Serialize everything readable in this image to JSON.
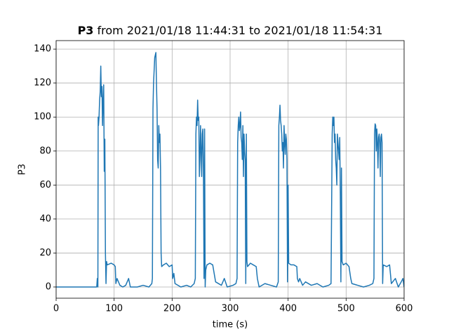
{
  "chart_data": {
    "type": "line",
    "title_bold": "P3",
    "title": "from 2021/01/18 11:44:31 to 2021/01/18 11:54:31",
    "xlabel": "time (s)",
    "ylabel": "P3",
    "xlim": [
      0,
      600
    ],
    "ylim": [
      -6.6,
      145
    ],
    "xticks": [
      0,
      100,
      200,
      300,
      400,
      500,
      600
    ],
    "yticks": [
      0,
      20,
      40,
      60,
      80,
      100,
      120,
      140
    ],
    "grid": true,
    "series": [
      {
        "name": "P3",
        "color": "#1f77b4",
        "x": [
          0,
          70,
          71,
          72,
          72.5,
          73,
          74,
          75,
          76,
          77,
          78,
          79,
          80,
          81,
          82,
          83,
          84,
          85,
          86,
          87,
          88,
          95,
          100,
          102,
          103,
          105,
          110,
          115,
          120,
          125,
          128,
          140,
          150,
          160,
          165,
          166,
          167,
          168,
          170,
          172,
          173,
          174,
          175,
          176,
          177,
          178,
          179,
          180,
          181,
          182,
          185,
          190,
          195,
          200,
          201,
          203,
          205,
          215,
          225,
          232,
          238,
          240,
          241,
          242,
          243,
          244,
          245,
          246,
          247,
          248,
          249,
          250,
          251,
          252,
          253,
          254,
          255,
          256,
          257,
          258,
          260,
          265,
          270,
          275,
          285,
          290,
          295,
          305,
          310,
          312,
          313,
          314,
          315,
          316,
          317,
          318,
          319,
          320,
          321,
          322,
          323,
          324,
          325,
          326,
          327,
          328,
          329,
          330,
          335,
          340,
          345,
          347,
          350,
          360,
          370,
          380,
          383,
          384,
          385,
          386,
          387,
          388,
          389,
          390,
          391,
          392,
          393,
          394,
          395,
          396,
          397,
          398,
          399,
          400,
          401,
          405,
          410,
          415,
          416,
          418,
          420,
          425,
          430,
          440,
          450,
          460,
          470,
          474,
          476,
          477,
          478,
          479,
          480,
          481,
          482,
          483,
          484,
          485,
          486,
          487,
          488,
          489,
          490,
          491,
          492,
          493,
          495,
          500,
          505,
          508,
          510,
          520,
          530,
          540,
          546,
          548,
          549,
          550,
          551,
          552,
          553,
          554,
          555,
          556,
          557,
          558,
          559,
          560,
          561,
          562,
          563,
          564,
          570,
          575,
          578,
          585,
          590,
          595,
          598,
          600
        ],
        "values": [
          0,
          0,
          5,
          0,
          100,
          95,
          100,
          110,
          115,
          130,
          112,
          118,
          95,
          110,
          119,
          68,
          87,
          20,
          2,
          15,
          13,
          14,
          13,
          12,
          2,
          5,
          1,
          0,
          1,
          5,
          0,
          0,
          1,
          0,
          2,
          5,
          105,
          120,
          135,
          138,
          120,
          105,
          75,
          70,
          95,
          85,
          90,
          70,
          20,
          12,
          13,
          14,
          12,
          13,
          5,
          8,
          2,
          0,
          1,
          0,
          2,
          5,
          90,
          100,
          95,
          110,
          98,
          100,
          65,
          75,
          95,
          80,
          65,
          90,
          93,
          70,
          5,
          93,
          0,
          10,
          13,
          14,
          13,
          3,
          1,
          5,
          0,
          1,
          2,
          5,
          85,
          95,
          100,
          92,
          95,
          103,
          88,
          85,
          75,
          95,
          65,
          90,
          80,
          75,
          2,
          90,
          15,
          12,
          14,
          13,
          12,
          5,
          0,
          2,
          1,
          0,
          3,
          95,
          100,
          107,
          98,
          95,
          90,
          80,
          85,
          70,
          95,
          85,
          78,
          90,
          87,
          75,
          3,
          60,
          14,
          13,
          13,
          12,
          5,
          3,
          5,
          1,
          3,
          1,
          2,
          0,
          1,
          2,
          90,
          100,
          95,
          100,
          85,
          90,
          75,
          70,
          60,
          90,
          85,
          80,
          75,
          88,
          55,
          3,
          70,
          15,
          13,
          14,
          12,
          5,
          2,
          1,
          0,
          1,
          2,
          5,
          90,
          96,
          95,
          80,
          93,
          85,
          70,
          88,
          90,
          85,
          65,
          88,
          90,
          85,
          2,
          13,
          12,
          13,
          2,
          5,
          0,
          3,
          5,
          0
        ]
      }
    ]
  }
}
